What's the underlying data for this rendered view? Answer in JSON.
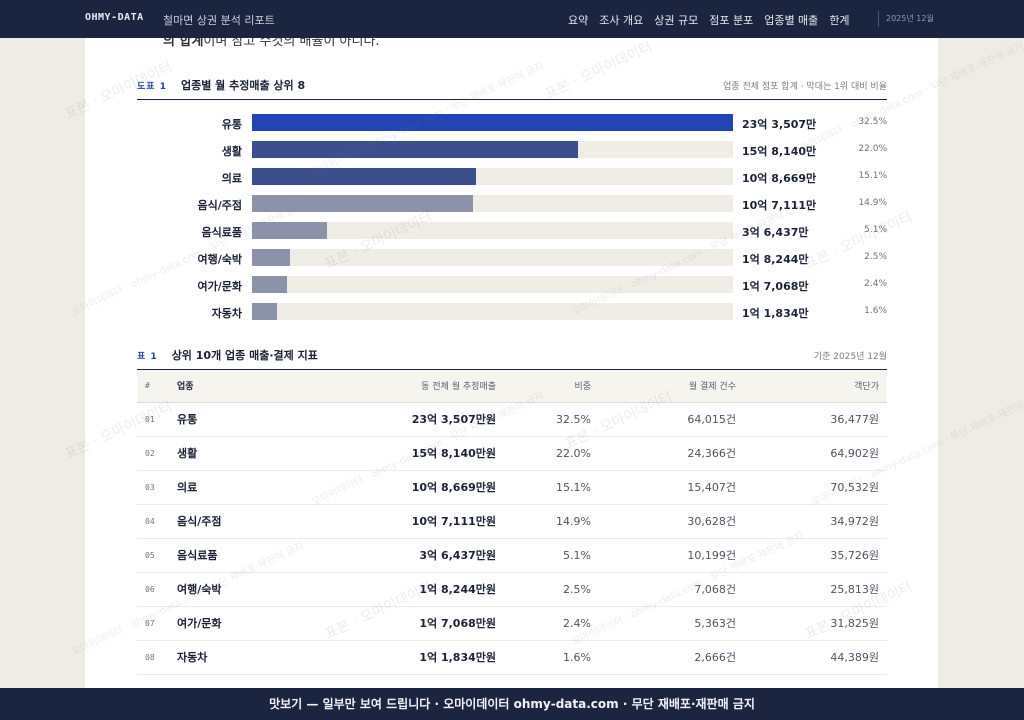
{
  "nav": {
    "brand": "OHMY-DATA",
    "report_title": "철마면 상권 분석 리포트",
    "items": [
      "요약",
      "조사 개요",
      "상권 규모",
      "점포 분포",
      "업종별 매출",
      "한계"
    ],
    "date": "2025년 12월"
  },
  "intro_line": {
    "bold": "의 합계",
    "rest": "이며 참고 수것의 배율이 아니다."
  },
  "figure": {
    "tag": "도표 1",
    "title": "업종별 월 추정매출 상위 8",
    "note": "업종 전체 점포 합계 · 막대는 1위 대비 비율",
    "bars": [
      {
        "label": "유통",
        "value": "23억 3,507만",
        "share": "32.5%",
        "ratio": 1.0,
        "color": "#2444b4"
      },
      {
        "label": "생활",
        "value": "15억 8,140만",
        "share": "22.0%",
        "ratio": 0.677,
        "color": "#3c4f8c"
      },
      {
        "label": "의료",
        "value": "10억 8,669만",
        "share": "15.1%",
        "ratio": 0.465,
        "color": "#3c4f8c"
      },
      {
        "label": "음식/주점",
        "value": "10억 7,111만",
        "share": "14.9%",
        "ratio": 0.459,
        "color": "#8c93a8"
      },
      {
        "label": "음식료품",
        "value": "3억 6,437만",
        "share": "5.1%",
        "ratio": 0.156,
        "color": "#8c93a8"
      },
      {
        "label": "여행/숙박",
        "value": "1억 8,244만",
        "share": "2.5%",
        "ratio": 0.078,
        "color": "#8c93a8"
      },
      {
        "label": "여가/문화",
        "value": "1억 7,068만",
        "share": "2.4%",
        "ratio": 0.073,
        "color": "#8c93a8"
      },
      {
        "label": "자동차",
        "value": "1억 1,834만",
        "share": "1.6%",
        "ratio": 0.051,
        "color": "#8c93a8"
      }
    ]
  },
  "table": {
    "tag": "표 1",
    "title": "상위 10개 업종 매출·결제 지표",
    "note": "기준 2025년 12월",
    "headers": [
      "#",
      "업종",
      "동 전체 월 추정매출",
      "비중",
      "월 결제 건수",
      "객단가"
    ],
    "rows": [
      {
        "num": "01",
        "name": "유통",
        "sales": "23억 3,507만원",
        "share": "32.5%",
        "count": "64,015건",
        "price": "36,477원"
      },
      {
        "num": "02",
        "name": "생활",
        "sales": "15억 8,140만원",
        "share": "22.0%",
        "count": "24,366건",
        "price": "64,902원"
      },
      {
        "num": "03",
        "name": "의료",
        "sales": "10억 8,669만원",
        "share": "15.1%",
        "count": "15,407건",
        "price": "70,532원"
      },
      {
        "num": "04",
        "name": "음식/주점",
        "sales": "10억 7,111만원",
        "share": "14.9%",
        "count": "30,628건",
        "price": "34,972원"
      },
      {
        "num": "05",
        "name": "음식료품",
        "sales": "3억 6,437만원",
        "share": "5.1%",
        "count": "10,199건",
        "price": "35,726원"
      },
      {
        "num": "06",
        "name": "여행/숙박",
        "sales": "1억 8,244만원",
        "share": "2.5%",
        "count": "7,068건",
        "price": "25,813원"
      },
      {
        "num": "07",
        "name": "여가/문화",
        "sales": "1억 7,068만원",
        "share": "2.4%",
        "count": "5,363건",
        "price": "31,825원"
      },
      {
        "num": "08",
        "name": "자동차",
        "sales": "1억 1,834만원",
        "share": "1.6%",
        "count": "2,666건",
        "price": "44,389원"
      }
    ]
  },
  "footer": "맛보기 — 일부만 보여 드립니다 · 오마이데이터 ohmy-data.com · 무단 재배포·재판매 금지",
  "watermark": {
    "line1": "표본 · 오마이데이터",
    "line2": "오마이데이터 · ohmy-data.com · 무단 재배포·재판매 금지"
  }
}
